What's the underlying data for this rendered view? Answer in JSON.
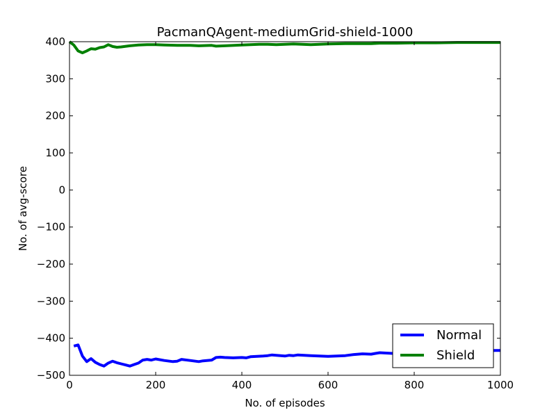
{
  "chart_data": {
    "type": "line",
    "title": "PacmanQAgent-mediumGrid-shield-1000",
    "xlabel": "No. of episodes",
    "ylabel": "No. of avg-score",
    "xlim": [
      0,
      1000
    ],
    "ylim": [
      -500,
      400
    ],
    "xticks": [
      0,
      200,
      400,
      600,
      800,
      1000
    ],
    "yticks": [
      400,
      300,
      200,
      100,
      0,
      -100,
      -200,
      -300,
      -400,
      -500
    ],
    "grid": false,
    "legend_position": "lower-right",
    "series": [
      {
        "name": "Normal",
        "color": "#0000ff",
        "x": [
          10,
          20,
          30,
          40,
          50,
          60,
          70,
          80,
          90,
          100,
          110,
          120,
          130,
          140,
          150,
          160,
          170,
          180,
          190,
          200,
          220,
          240,
          250,
          260,
          280,
          300,
          310,
          330,
          340,
          350,
          360,
          380,
          400,
          410,
          420,
          450,
          460,
          470,
          500,
          510,
          520,
          530,
          560,
          600,
          640,
          660,
          680,
          700,
          710,
          720,
          750,
          800,
          850,
          900,
          950,
          990,
          1000
        ],
        "y": [
          -421,
          -418,
          -448,
          -463,
          -455,
          -465,
          -471,
          -475,
          -467,
          -462,
          -466,
          -469,
          -472,
          -475,
          -471,
          -467,
          -459,
          -457,
          -459,
          -456,
          -460,
          -463,
          -462,
          -457,
          -460,
          -463,
          -461,
          -459,
          -452,
          -451,
          -452,
          -453,
          -452,
          -453,
          -450,
          -448,
          -447,
          -445,
          -448,
          -446,
          -447,
          -445,
          -447,
          -449,
          -447,
          -444,
          -442,
          -443,
          -441,
          -439,
          -441,
          -438,
          -437,
          -436,
          -434,
          -433,
          -433
        ]
      },
      {
        "name": "Shield",
        "color": "#008000",
        "x": [
          0,
          10,
          20,
          30,
          40,
          50,
          60,
          70,
          80,
          90,
          100,
          110,
          120,
          140,
          160,
          180,
          200,
          220,
          250,
          280,
          300,
          330,
          340,
          360,
          400,
          420,
          440,
          460,
          480,
          500,
          520,
          540,
          560,
          600,
          640,
          680,
          700,
          720,
          760,
          800,
          850,
          900,
          950,
          1000
        ],
        "y": [
          400,
          391,
          375,
          370,
          375,
          381,
          380,
          384,
          386,
          392,
          387,
          385,
          386,
          389,
          391,
          392,
          392,
          391,
          390,
          390,
          389,
          390,
          388,
          389,
          391,
          392,
          393,
          393,
          392,
          393,
          394,
          393,
          392,
          394,
          395,
          395,
          395,
          396,
          396,
          397,
          397,
          398,
          398,
          398
        ]
      }
    ]
  }
}
